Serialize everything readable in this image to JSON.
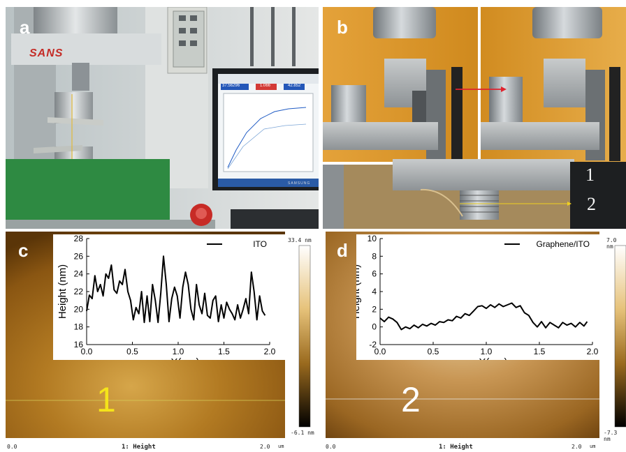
{
  "panels": {
    "a": {
      "letter": "a",
      "brand": "SANS",
      "screen_values": [
        "37.56296",
        "1.066",
        "42.852"
      ],
      "monitor_brand": "SAMSUNG"
    },
    "b": {
      "letter": "b",
      "scale_marks": [
        "1",
        "2"
      ]
    },
    "c": {
      "letter": "c",
      "line_number": "1",
      "afm_max": "33.4 nm",
      "afm_min": "-6.1 nm",
      "afm_x_start": "0.0",
      "afm_x_end": "2.0",
      "afm_unit": "um",
      "afm_caption": "1: Height"
    },
    "d": {
      "letter": "d",
      "line_number": "2",
      "afm_max": "7.0 nm",
      "afm_min": "-7.3 nm",
      "afm_x_start": "0.0",
      "afm_x_end": "2.0",
      "afm_unit": "um",
      "afm_caption": "1: Height"
    }
  },
  "chart_data": [
    {
      "panel": "c",
      "type": "line",
      "xlabel": "X(μm)",
      "ylabel": "Height (nm)",
      "xlim": [
        0,
        2.0
      ],
      "ylim": [
        16,
        28
      ],
      "xticks": [
        "0.0",
        "0.5",
        "1.0",
        "1.5",
        "2.0"
      ],
      "yticks": [
        "16",
        "18",
        "20",
        "22",
        "24",
        "26",
        "28"
      ],
      "series": [
        {
          "name": "ITO",
          "x": [
            0.0,
            0.03,
            0.06,
            0.09,
            0.12,
            0.15,
            0.18,
            0.21,
            0.24,
            0.27,
            0.3,
            0.33,
            0.36,
            0.39,
            0.42,
            0.45,
            0.48,
            0.51,
            0.54,
            0.57,
            0.6,
            0.63,
            0.66,
            0.69,
            0.72,
            0.75,
            0.78,
            0.81,
            0.84,
            0.87,
            0.9,
            0.93,
            0.96,
            0.99,
            1.02,
            1.05,
            1.08,
            1.11,
            1.14,
            1.17,
            1.2,
            1.23,
            1.26,
            1.29,
            1.32,
            1.35,
            1.38,
            1.41,
            1.44,
            1.47,
            1.5,
            1.53,
            1.56,
            1.59,
            1.62,
            1.65,
            1.68,
            1.71,
            1.74,
            1.77,
            1.8,
            1.83,
            1.86,
            1.89,
            1.92,
            1.95
          ],
          "values": [
            19.8,
            21.6,
            21.2,
            23.8,
            22.0,
            22.8,
            21.5,
            24.0,
            23.5,
            25.0,
            22.2,
            21.8,
            23.2,
            22.8,
            24.5,
            22.0,
            21.0,
            18.8,
            20.2,
            19.5,
            22.0,
            18.5,
            21.5,
            18.6,
            22.8,
            21.0,
            18.5,
            21.8,
            26.0,
            22.8,
            18.6,
            21.2,
            22.5,
            21.5,
            19.0,
            22.5,
            24.2,
            22.8,
            20.0,
            18.8,
            22.8,
            20.5,
            19.5,
            21.8,
            19.3,
            19.0,
            21.0,
            21.5,
            18.6,
            20.5,
            19.0,
            20.8,
            20.0,
            19.5,
            18.8,
            20.5,
            19.0,
            20.0,
            21.2,
            19.5,
            24.2,
            22.0,
            18.8,
            21.5,
            19.8,
            19.3
          ]
        }
      ]
    },
    {
      "panel": "d",
      "type": "line",
      "xlabel": "X(μm)",
      "ylabel": "Height (nm)",
      "xlim": [
        0,
        2.0
      ],
      "ylim": [
        -2,
        10
      ],
      "xticks": [
        "0.0",
        "0.5",
        "1.0",
        "1.5",
        "2.0"
      ],
      "yticks": [
        "-2",
        "0",
        "2",
        "4",
        "6",
        "8",
        "10"
      ],
      "series": [
        {
          "name": "Graphene/ITO",
          "x": [
            0.0,
            0.04,
            0.08,
            0.12,
            0.16,
            0.2,
            0.24,
            0.28,
            0.32,
            0.36,
            0.4,
            0.44,
            0.48,
            0.52,
            0.56,
            0.6,
            0.64,
            0.68,
            0.72,
            0.76,
            0.8,
            0.84,
            0.88,
            0.92,
            0.96,
            1.0,
            1.04,
            1.08,
            1.12,
            1.16,
            1.2,
            1.24,
            1.28,
            1.32,
            1.36,
            1.4,
            1.44,
            1.48,
            1.52,
            1.56,
            1.6,
            1.64,
            1.68,
            1.72,
            1.76,
            1.8,
            1.84,
            1.88,
            1.92,
            1.95
          ],
          "values": [
            1.0,
            0.6,
            1.1,
            0.9,
            0.5,
            -0.3,
            0.0,
            -0.2,
            0.2,
            -0.1,
            0.3,
            0.1,
            0.4,
            0.2,
            0.6,
            0.5,
            0.8,
            0.7,
            1.2,
            1.0,
            1.5,
            1.3,
            1.8,
            2.3,
            2.4,
            2.1,
            2.5,
            2.2,
            2.6,
            2.3,
            2.5,
            2.7,
            2.2,
            2.4,
            1.6,
            1.3,
            0.5,
            0.0,
            0.6,
            -0.1,
            0.5,
            0.2,
            -0.1,
            0.5,
            0.2,
            0.4,
            0.0,
            0.5,
            0.1,
            0.6
          ]
        }
      ]
    }
  ]
}
